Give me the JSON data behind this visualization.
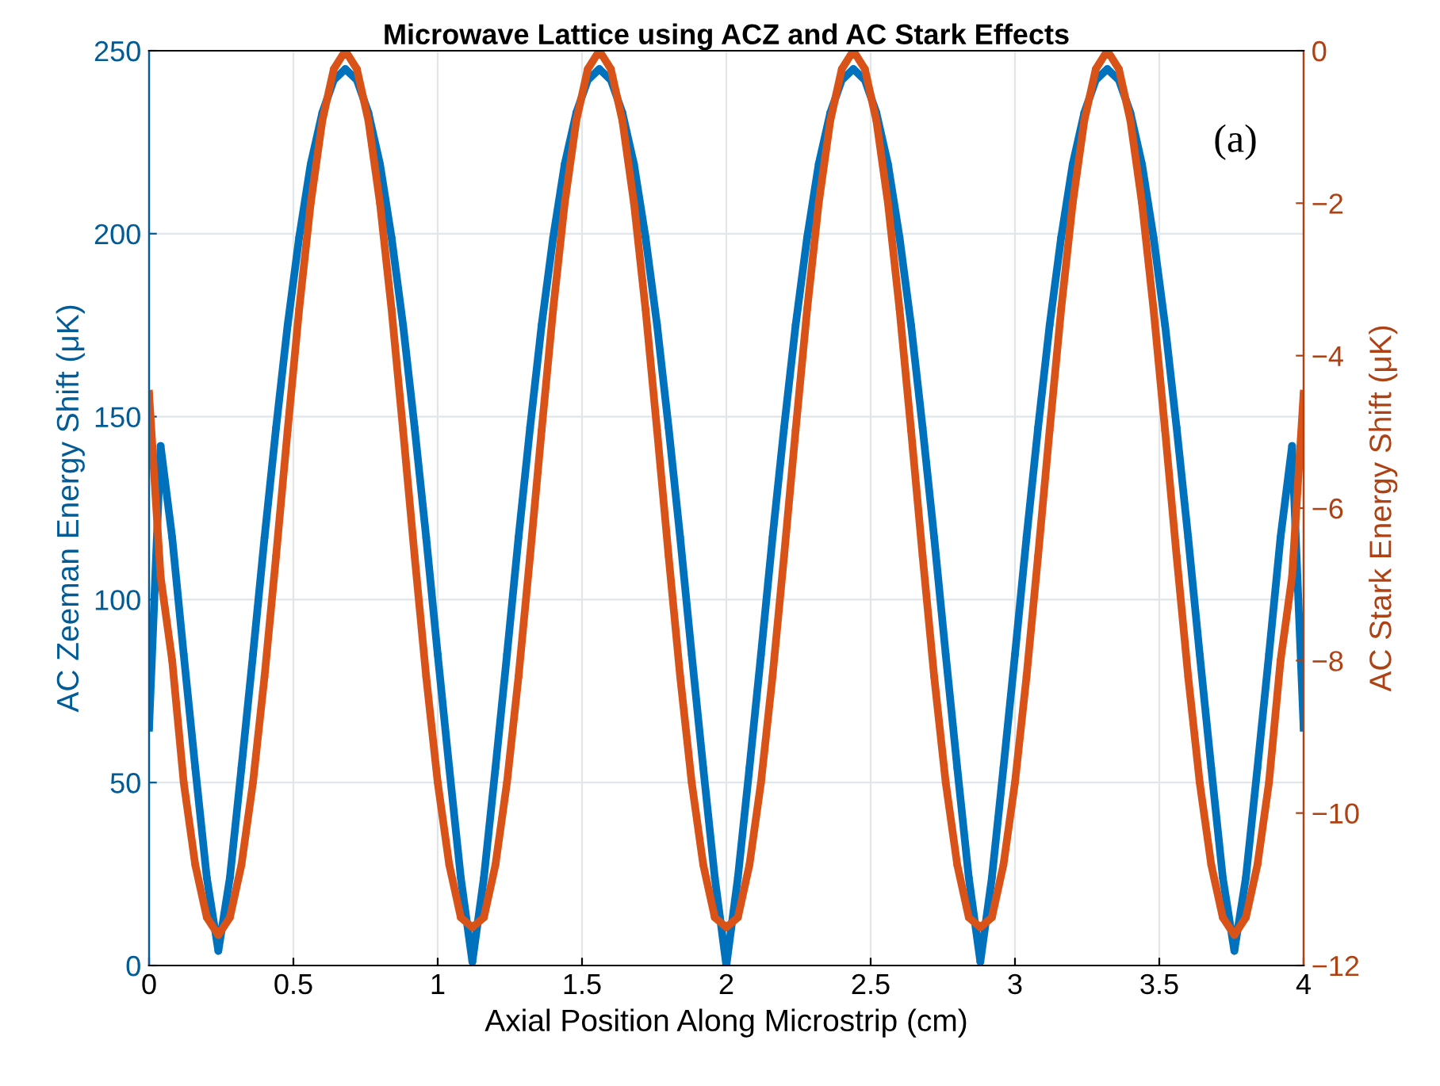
{
  "chart_data": {
    "type": "line",
    "title": "Microwave Lattice using ACZ and AC Stark Effects",
    "xlabel": "Axial Position Along Microstrip (cm)",
    "ylabel": "AC Zeeman Energy Shift (μK)",
    "y2label": "AC Stark Energy Shift (μK)",
    "annotations": [
      "(a)"
    ],
    "x": [
      0,
      0.04,
      0.08,
      0.12,
      0.16,
      0.2,
      0.24,
      0.28,
      0.32,
      0.36,
      0.4,
      0.44,
      0.48,
      0.52,
      0.56,
      0.6,
      0.64,
      0.68,
      0.72,
      0.76,
      0.8,
      0.84,
      0.88,
      0.92,
      0.96,
      1.0,
      1.04,
      1.08,
      1.12,
      1.16,
      1.2,
      1.24,
      1.28,
      1.32,
      1.36,
      1.4,
      1.44,
      1.48,
      1.52,
      1.56,
      1.6,
      1.64,
      1.68,
      1.72,
      1.76,
      1.8,
      1.84,
      1.88,
      1.92,
      1.96,
      2.0,
      2.04,
      2.08,
      2.12,
      2.16,
      2.2,
      2.24,
      2.28,
      2.32,
      2.36,
      2.4,
      2.44,
      2.48,
      2.52,
      2.56,
      2.6,
      2.64,
      2.68,
      2.72,
      2.76,
      2.8,
      2.84,
      2.88,
      2.92,
      2.96,
      3.0,
      3.04,
      3.08,
      3.12,
      3.16,
      3.2,
      3.24,
      3.28,
      3.32,
      3.36,
      3.4,
      3.44,
      3.48,
      3.52,
      3.56,
      3.6,
      3.64,
      3.68,
      3.72,
      3.76,
      3.8,
      3.84,
      3.88,
      3.92,
      3.96,
      4.0
    ],
    "series": [
      {
        "color": "#0072bd",
        "values": [
          65,
          142,
          117,
          85,
          54,
          24,
          4,
          24,
          54,
          85,
          117,
          147,
          175,
          199,
          219,
          233,
          242,
          245,
          242,
          233,
          219,
          199,
          175,
          147,
          117,
          85,
          54,
          24,
          1,
          24,
          54,
          85,
          117,
          147,
          175,
          199,
          219,
          233,
          242,
          245,
          242,
          233,
          219,
          199,
          175,
          147,
          117,
          85,
          54,
          24,
          0,
          24,
          54,
          85,
          117,
          147,
          175,
          199,
          219,
          233,
          242,
          245,
          242,
          233,
          219,
          199,
          175,
          147,
          117,
          85,
          54,
          24,
          1,
          24,
          54,
          85,
          117,
          147,
          175,
          199,
          219,
          233,
          242,
          245,
          242,
          233,
          219,
          199,
          175,
          147,
          117,
          85,
          54,
          24,
          4,
          24,
          54,
          85,
          117,
          142,
          65
        ]
      },
      {
        "color": "#d95319",
        "axis": "y2",
        "values": [
          -4.5,
          -6.9,
          -8.0,
          -9.6,
          -10.68,
          -11.37,
          -11.6,
          -11.37,
          -10.68,
          -9.6,
          -8.21,
          -6.63,
          -4.98,
          -3.39,
          -2.0,
          -0.92,
          -0.24,
          0,
          -0.24,
          -0.92,
          -2.0,
          -3.39,
          -4.98,
          -6.63,
          -8.21,
          -9.6,
          -10.68,
          -11.37,
          -11.5,
          -11.37,
          -10.68,
          -9.6,
          -8.21,
          -6.63,
          -4.98,
          -3.39,
          -2.0,
          -0.92,
          -0.24,
          0,
          -0.24,
          -0.92,
          -2.0,
          -3.39,
          -4.98,
          -6.63,
          -8.21,
          -9.6,
          -10.68,
          -11.37,
          -11.5,
          -11.37,
          -10.68,
          -9.6,
          -8.21,
          -6.63,
          -4.98,
          -3.39,
          -2.0,
          -0.92,
          -0.24,
          0,
          -0.24,
          -0.92,
          -2.0,
          -3.39,
          -4.98,
          -6.63,
          -8.21,
          -9.6,
          -10.68,
          -11.37,
          -11.5,
          -11.37,
          -10.68,
          -9.6,
          -8.21,
          -6.63,
          -4.98,
          -3.39,
          -2.0,
          -0.92,
          -0.24,
          0,
          -0.24,
          -0.92,
          -2.0,
          -3.39,
          -4.98,
          -6.63,
          -8.21,
          -9.6,
          -10.68,
          -11.37,
          -11.6,
          -11.37,
          -10.68,
          -9.6,
          -8.0,
          -6.9,
          -4.5
        ]
      }
    ],
    "xlim": [
      0,
      4
    ],
    "xticks": [
      0,
      0.5,
      1,
      1.5,
      2,
      2.5,
      3,
      3.5,
      4
    ],
    "ylim": [
      0,
      250
    ],
    "yticks": [
      0,
      50,
      100,
      150,
      200,
      250
    ],
    "y2lim": [
      -12,
      0
    ],
    "y2ticks": [
      {
        "value": -12,
        "label": "−12"
      },
      {
        "value": -10,
        "label": "−10"
      },
      {
        "value": -8,
        "label": "−8"
      },
      {
        "value": -6,
        "label": "−6"
      },
      {
        "value": -4,
        "label": "−4"
      },
      {
        "value": -2,
        "label": "−2"
      },
      0
    ],
    "grid": true,
    "marker": "circle",
    "line_style": "solid",
    "legend": false
  }
}
